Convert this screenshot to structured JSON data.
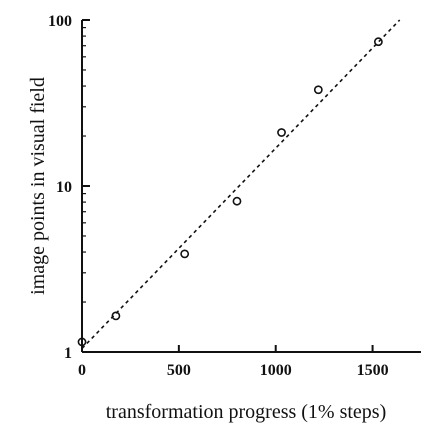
{
  "chart_data": {
    "type": "scatter",
    "title": "",
    "xlabel": "transformation progress (1% steps)",
    "ylabel": "image points in visual field",
    "xscale": "linear",
    "yscale": "log",
    "xlim": [
      0,
      1750
    ],
    "ylim": [
      1,
      100
    ],
    "xticks": [
      0,
      500,
      1000,
      1500
    ],
    "xtick_labels": [
      "0",
      "500",
      "1000",
      "1500"
    ],
    "yticks": [
      1,
      10,
      100
    ],
    "ytick_labels": [
      "1",
      "10",
      "100"
    ],
    "grid": false,
    "legend": "none",
    "marker": "open-circle",
    "series": [
      {
        "x": [
          0,
          175,
          530,
          800,
          1030,
          1220,
          1530
        ],
        "y": [
          1.15,
          1.65,
          3.9,
          8.1,
          21,
          38,
          74
        ]
      }
    ],
    "fit_line": {
      "style": "dotted",
      "x": [
        0,
        1640
      ],
      "y": [
        1.05,
        100
      ]
    },
    "colors": {
      "ink": "#111111",
      "background": "#ffffff"
    }
  }
}
